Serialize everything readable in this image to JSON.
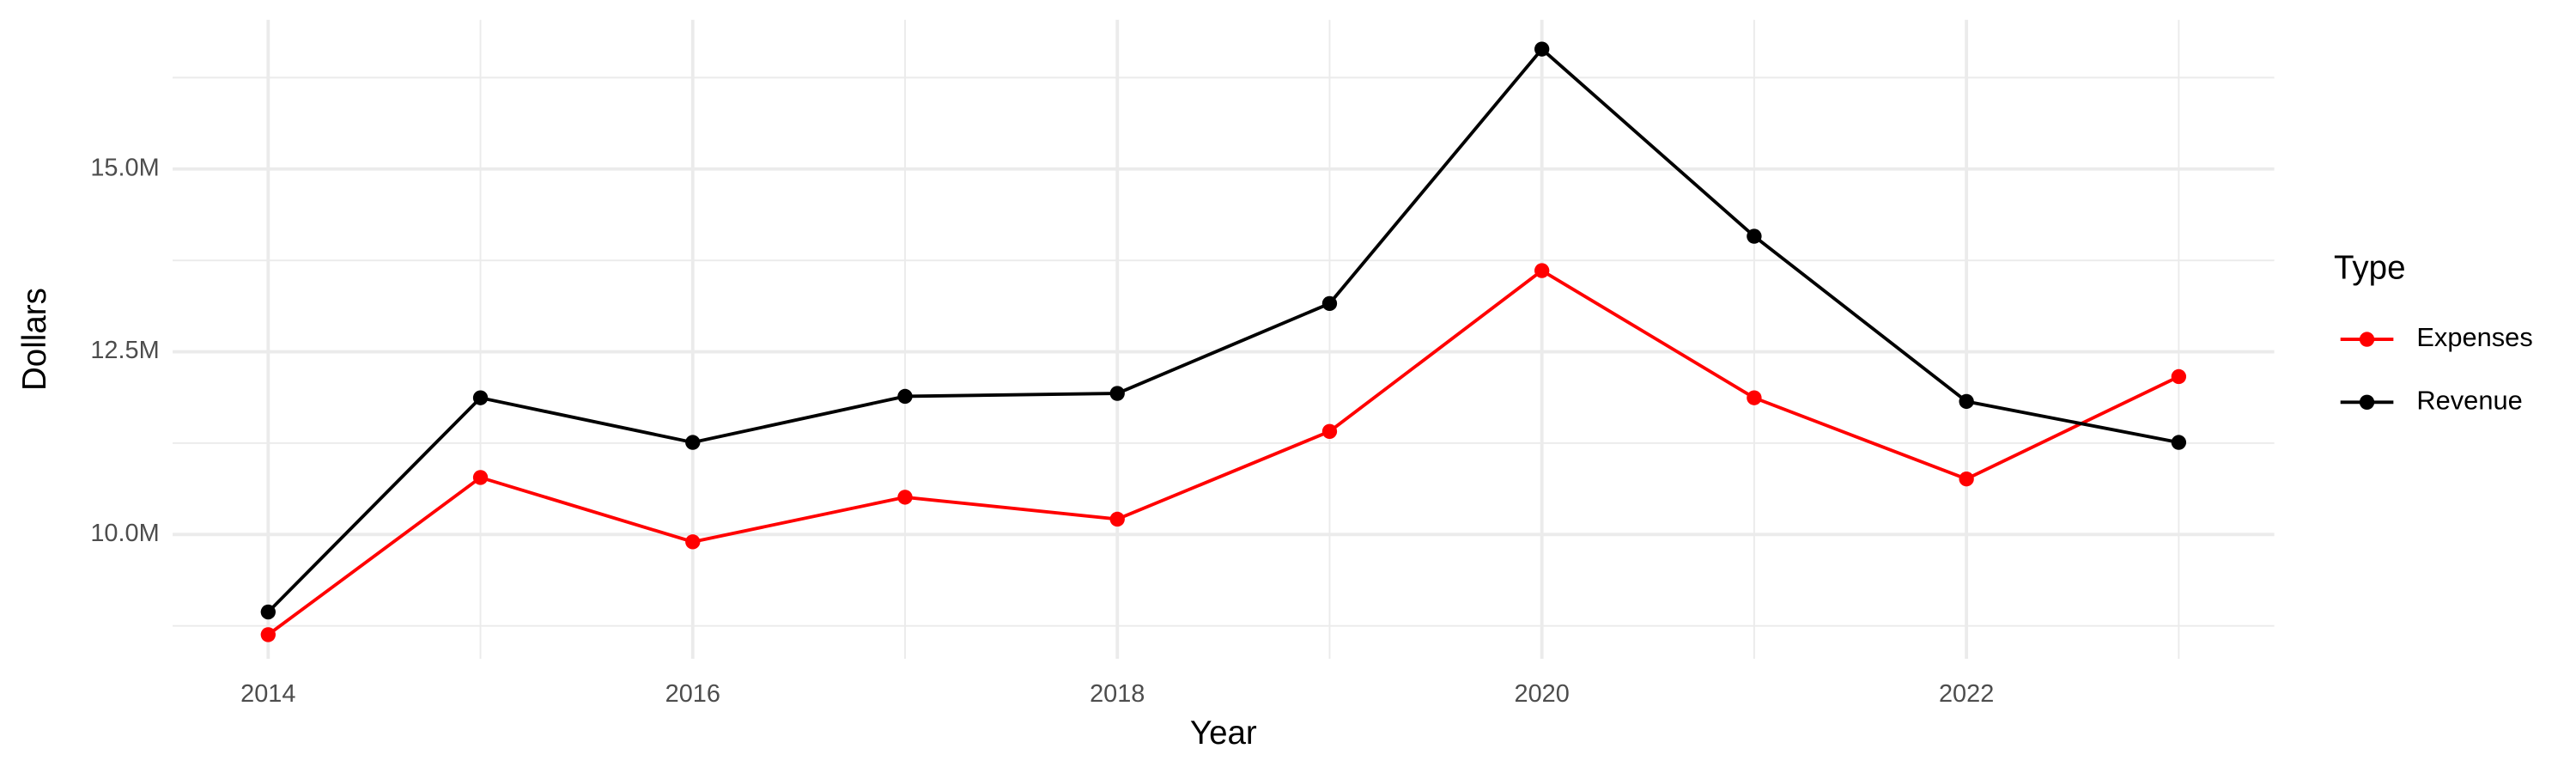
{
  "chart_data": {
    "type": "line",
    "x_label": "Year",
    "y_label": "Dollars",
    "legend_title": "Type",
    "legend_position": "right",
    "grid": true,
    "x": [
      2014,
      2015,
      2016,
      2017,
      2018,
      2019,
      2020,
      2021,
      2022,
      2023
    ],
    "xlim": [
      2013.55,
      2023.45
    ],
    "xticks": [
      2014,
      2016,
      2018,
      2020,
      2022
    ],
    "ylim": [
      8300000,
      17040000
    ],
    "yticks": [
      {
        "value": 10000000,
        "label": "10.0M"
      },
      {
        "value": 12500000,
        "label": "12.5M"
      },
      {
        "value": 15000000,
        "label": "15.0M"
      }
    ],
    "series": [
      {
        "name": "Expenses",
        "color": "#ff0000",
        "values": [
          8630000,
          10780000,
          9900000,
          10510000,
          10210000,
          11410000,
          13610000,
          11870000,
          10760000,
          12160000
        ]
      },
      {
        "name": "Revenue",
        "color": "#000000",
        "values": [
          8940000,
          11870000,
          11260000,
          11890000,
          11930000,
          13160000,
          16640000,
          14080000,
          11820000,
          11260000
        ]
      }
    ]
  }
}
